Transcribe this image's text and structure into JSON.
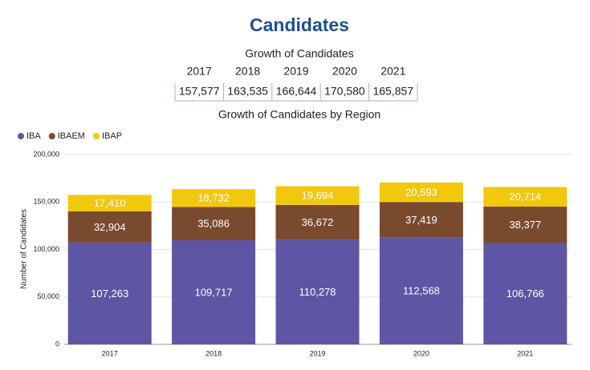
{
  "title": "Candidates",
  "table": {
    "title": "Growth of Candidates",
    "columns": [
      "2017",
      "2018",
      "2019",
      "2020",
      "2021"
    ],
    "rows": [
      [
        "157,577",
        "163,535",
        "166,644",
        "170,580",
        "165,857"
      ]
    ]
  },
  "chart_data": {
    "type": "bar",
    "stacked": true,
    "title": "Growth of Candidates by Region",
    "y_label": "Number of Candidates",
    "categories": [
      "2017",
      "2018",
      "2019",
      "2020",
      "2021"
    ],
    "series": [
      {
        "name": "IBA",
        "color": "#5f55a5",
        "values": [
          107263,
          109717,
          110278,
          112568,
          106766
        ],
        "value_labels": [
          "107,263",
          "109,717",
          "110,278",
          "112,568",
          "106,766"
        ]
      },
      {
        "name": "IBAEM",
        "color": "#7a4a2f",
        "values": [
          32904,
          35086,
          36672,
          37419,
          38377
        ],
        "value_labels": [
          "32,904",
          "35,086",
          "36,672",
          "37,419",
          "38,377"
        ]
      },
      {
        "name": "IBAP",
        "color": "#f2c80f",
        "values": [
          17410,
          18732,
          19694,
          20593,
          20714
        ],
        "value_labels": [
          "17,410",
          "18,732",
          "19,694",
          "20,593",
          "20,714"
        ]
      }
    ],
    "ylim": [
      0,
      200000
    ],
    "yticks": [
      0,
      {
        "value": 50000,
        "label": "50,000"
      },
      {
        "value": 100000,
        "label": "100,000"
      },
      {
        "value": 150000,
        "label": "150,000"
      },
      {
        "value": 200000,
        "label": "200,000"
      }
    ],
    "grid": true,
    "legend": "top-left"
  }
}
